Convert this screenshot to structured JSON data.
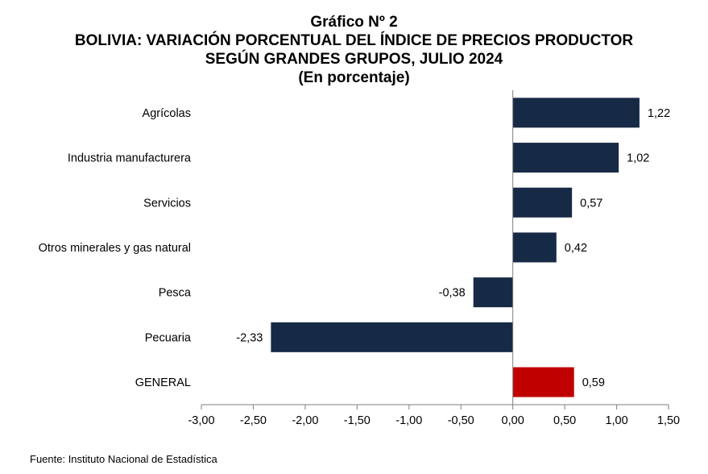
{
  "title": "Gráfico Nº 2",
  "subtitle_line1": "BOLIVIA: VARIACIÓN PORCENTUAL DEL ÍNDICE DE PRECIOS PRODUCTOR",
  "subtitle_line2": "SEGÚN GRANDES GRUPOS, JULIO 2024",
  "subtitle_line3": "(En porcentaje)",
  "source": "Fuente: Instituto Nacional de Estadística",
  "chart_data": {
    "type": "bar",
    "orientation": "horizontal",
    "categories": [
      "Agrícolas",
      "Industria manufacturera",
      "Servicios",
      "Otros minerales y gas natural",
      "Pesca",
      "Pecuaria",
      "GENERAL"
    ],
    "values": [
      1.22,
      1.02,
      0.57,
      0.42,
      -0.38,
      -2.33,
      0.59
    ],
    "data_labels": [
      "1,22",
      "1,02",
      "0,57",
      "0,42",
      "-0,38",
      "-2,33",
      "0,59"
    ],
    "xlim": [
      -3.0,
      1.5
    ],
    "x_ticks": [
      -3.0,
      -2.5,
      -2.0,
      -1.5,
      -1.0,
      -0.5,
      0.0,
      0.5,
      1.0,
      1.5
    ],
    "x_tick_labels": [
      "-3,00",
      "-2,50",
      "-2,00",
      "-1,50",
      "-1,00",
      "-0,50",
      "0,00",
      "0,50",
      "1,00",
      "1,50"
    ],
    "colors": {
      "default": "#172a45",
      "highlight": "#c00000"
    },
    "highlight_category": "GENERAL",
    "grid": false,
    "legend": "none"
  }
}
